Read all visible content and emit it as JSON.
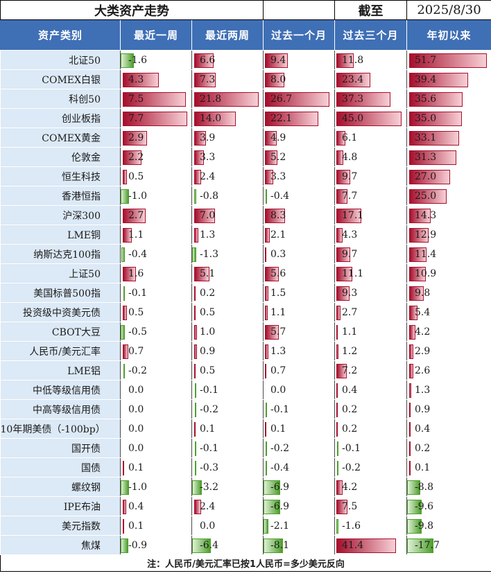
{
  "header": {
    "title": "大类资产走势",
    "asof_label": "截至",
    "asof_date": "2025/8/30"
  },
  "columns": [
    "资产类别",
    "最近一周",
    "最近两周",
    "过去一个月",
    "过去三个月",
    "年初以来"
  ],
  "colors": {
    "header_bg": "#3f6fb5",
    "name_bg": "#dce9f6",
    "positive": "#a50f2d",
    "negative": "#4e9f2c"
  },
  "rows": [
    {
      "name": "北证50",
      "values": [
        -1.6,
        6.6,
        9.4,
        11.8,
        51.7
      ],
      "labels": [
        "-1.6",
        "6.6",
        "9.4",
        "11.8",
        "51.7"
      ]
    },
    {
      "name": "COMEX白银",
      "values": [
        4.3,
        7.3,
        8.0,
        23.4,
        39.4
      ],
      "labels": [
        "4.3",
        "7.3",
        "8.0",
        "23.4",
        "39.4"
      ]
    },
    {
      "name": "科创50",
      "values": [
        7.5,
        21.8,
        26.7,
        37.3,
        35.6
      ],
      "labels": [
        "7.5",
        "21.8",
        "26.7",
        "37.3",
        "35.6"
      ]
    },
    {
      "name": "创业板指",
      "values": [
        7.7,
        14.0,
        22.1,
        45.0,
        35.0
      ],
      "labels": [
        "7.7",
        "14.0",
        "22.1",
        "45.0",
        "35.0"
      ]
    },
    {
      "name": "COMEX黄金",
      "values": [
        2.9,
        3.9,
        4.9,
        6.1,
        33.1
      ],
      "labels": [
        "2.9",
        "3.9",
        "4.9",
        "6.1",
        "33.1"
      ]
    },
    {
      "name": "伦敦金",
      "values": [
        2.2,
        3.3,
        5.2,
        4.8,
        31.3
      ],
      "labels": [
        "2.2",
        "3.3",
        "5.2",
        "4.8",
        "31.3"
      ]
    },
    {
      "name": "恒生科技",
      "values": [
        0.5,
        2.4,
        3.3,
        9.7,
        27.0
      ],
      "labels": [
        "0.5",
        "2.4",
        "3.3",
        "9.7",
        "27.0"
      ]
    },
    {
      "name": "香港恒指",
      "values": [
        -1.0,
        -0.8,
        -0.4,
        7.7,
        25.0
      ],
      "labels": [
        "-1.0",
        "-0.8",
        "-0.4",
        "7.7",
        "25.0"
      ]
    },
    {
      "name": "沪深300",
      "values": [
        2.7,
        7.0,
        8.3,
        17.1,
        14.3
      ],
      "labels": [
        "2.7",
        "7.0",
        "8.3",
        "17.1",
        "14.3"
      ]
    },
    {
      "name": "LME铜",
      "values": [
        1.1,
        1.3,
        2.1,
        4.3,
        12.9
      ],
      "labels": [
        "1.1",
        "1.3",
        "2.1",
        "4.3",
        "12.9"
      ]
    },
    {
      "name": "纳斯达克100指",
      "values": [
        -0.4,
        -1.3,
        0.3,
        9.7,
        11.4
      ],
      "labels": [
        "-0.4",
        "-1.3",
        "0.3",
        "9.7",
        "11.4"
      ]
    },
    {
      "name": "上证50",
      "values": [
        1.6,
        5.1,
        5.6,
        11.1,
        10.9
      ],
      "labels": [
        "1.6",
        "5.1",
        "5.6",
        "11.1",
        "10.9"
      ]
    },
    {
      "name": "美国标普500指",
      "values": [
        -0.1,
        0.2,
        1.5,
        9.3,
        9.8
      ],
      "labels": [
        "-0.1",
        "0.2",
        "1.5",
        "9.3",
        "9.8"
      ]
    },
    {
      "name": "投资级中资美元债",
      "values": [
        0.5,
        0.5,
        1.1,
        2.7,
        5.4
      ],
      "labels": [
        "0.5",
        "0.5",
        "1.1",
        "2.7",
        "5.4"
      ]
    },
    {
      "name": "CBOT大豆",
      "values": [
        -0.5,
        1.0,
        5.7,
        1.1,
        4.2
      ],
      "labels": [
        "-0.5",
        "1.0",
        "5.7",
        "1.1",
        "4.2"
      ]
    },
    {
      "name": "人民币/美元汇率",
      "values": [
        0.7,
        0.9,
        1.3,
        1.2,
        2.9
      ],
      "labels": [
        "0.7",
        "0.9",
        "1.3",
        "1.2",
        "2.9"
      ]
    },
    {
      "name": "LME铝",
      "values": [
        -0.2,
        0.5,
        0.7,
        7.2,
        2.6
      ],
      "labels": [
        "-0.2",
        "0.5",
        "0.7",
        "7.2",
        "2.6"
      ]
    },
    {
      "name": "中低等级信用债",
      "values": [
        0.0,
        -0.1,
        0.0,
        0.4,
        1.3
      ],
      "labels": [
        "0.0",
        "-0.1",
        "0.0",
        "0.4",
        "1.3"
      ]
    },
    {
      "name": "中高等级信用债",
      "values": [
        0.0,
        -0.2,
        -0.1,
        0.2,
        0.9
      ],
      "labels": [
        "0.0",
        "-0.2",
        "-0.1",
        "0.2",
        "0.9"
      ]
    },
    {
      "name": "10年期美债（-100bp）",
      "values": [
        0.0,
        0.1,
        0.1,
        0.2,
        0.4
      ],
      "labels": [
        "0.0",
        "0.1",
        "0.1",
        "0.2",
        "0.4"
      ]
    },
    {
      "name": "国开债",
      "values": [
        0.0,
        -0.1,
        -0.2,
        -0.1,
        0.2
      ],
      "labels": [
        "0.0",
        "-0.1",
        "-0.2",
        "-0.1",
        "0.2"
      ]
    },
    {
      "name": "国债",
      "values": [
        0.1,
        -0.3,
        -0.4,
        -0.2,
        0.1
      ],
      "labels": [
        "0.1",
        "-0.3",
        "-0.4",
        "-0.2",
        "0.1"
      ]
    },
    {
      "name": "螺纹钢",
      "values": [
        -1.0,
        -3.2,
        -6.9,
        4.2,
        -8.8
      ],
      "labels": [
        "-1.0",
        "-3.2",
        "-6.9",
        "4.2",
        "-8.8"
      ]
    },
    {
      "name": "IPE布油",
      "values": [
        0.4,
        2.4,
        -6.9,
        7.5,
        -9.6
      ],
      "labels": [
        "0.4",
        "2.4",
        "-6.9",
        "7.5",
        "-9.6"
      ]
    },
    {
      "name": "美元指数",
      "values": [
        0.1,
        0.0,
        -2.1,
        -1.6,
        -9.8
      ],
      "labels": [
        "0.1",
        "0.0",
        "-2.1",
        "-1.6",
        "-9.8"
      ]
    },
    {
      "name": "焦煤",
      "values": [
        -0.9,
        -6.4,
        -8.1,
        41.4,
        -17.7
      ],
      "labels": [
        "-0.9",
        "-6.4",
        "-8.1",
        "41.4",
        "-17.7"
      ]
    }
  ],
  "footnote": "注：人民币/美元汇率已按1人民币=多少美元反向"
}
